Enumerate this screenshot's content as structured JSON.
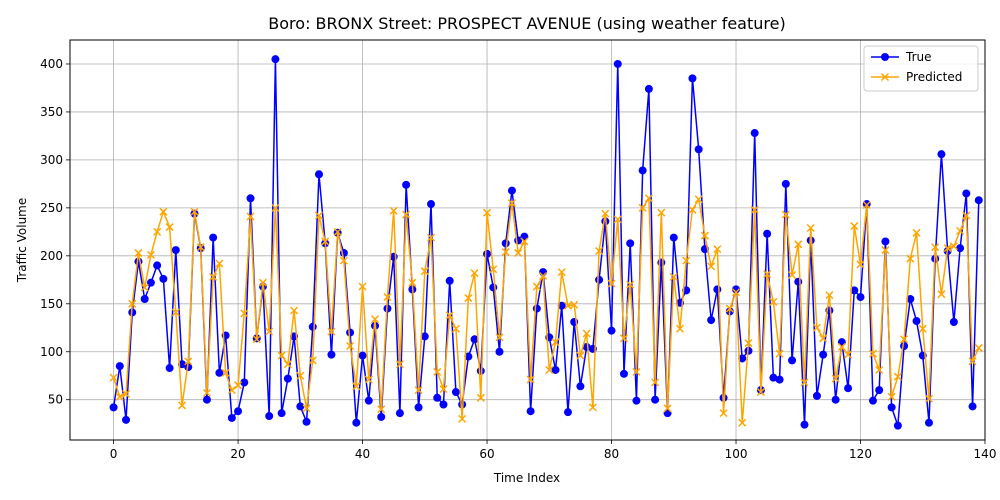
{
  "chart_data": {
    "type": "line",
    "title": "Boro: BRONX Street: PROSPECT AVENUE (using weather feature)",
    "xlabel": "Time Index",
    "ylabel": "Traffic Volume",
    "xlim": [
      -7,
      140
    ],
    "ylim": [
      8,
      425
    ],
    "xticks": [
      0,
      20,
      40,
      60,
      80,
      100,
      120,
      140
    ],
    "yticks": [
      50,
      100,
      150,
      200,
      250,
      300,
      350,
      400
    ],
    "grid": true,
    "legend_position": "top-right",
    "series": [
      {
        "name": "True",
        "color": "#0000ff",
        "marker": "circle",
        "values": [
          42,
          85,
          29,
          141,
          194,
          155,
          172,
          190,
          176,
          83,
          206,
          87,
          84,
          244,
          208,
          50,
          219,
          78,
          117,
          31,
          38,
          68,
          260,
          114,
          168,
          33,
          405,
          36,
          72,
          116,
          43,
          27,
          126,
          285,
          213,
          97,
          224,
          203,
          120,
          26,
          96,
          49,
          127,
          32,
          145,
          199,
          36,
          274,
          165,
          42,
          116,
          254,
          52,
          45,
          174,
          58,
          45,
          95,
          113,
          80,
          202,
          167,
          100,
          213,
          268,
          216,
          220,
          38,
          145,
          183,
          115,
          81,
          148,
          37,
          131,
          64,
          105,
          103,
          175,
          236,
          122,
          400,
          77,
          213,
          49,
          289,
          374,
          50,
          193,
          36,
          219,
          151,
          164,
          385,
          311,
          207,
          133,
          165,
          52,
          142,
          165,
          93,
          101,
          328,
          60,
          223,
          73,
          71,
          275,
          91,
          173,
          24,
          216,
          54,
          97,
          143,
          50,
          110,
          62,
          164,
          157,
          254,
          49,
          60,
          215,
          42,
          23,
          106,
          155,
          132,
          96,
          26,
          197,
          306,
          205,
          131,
          208,
          265,
          43,
          258
        ]
      },
      {
        "name": "Predicted",
        "color": "#ffa500",
        "marker": "x",
        "values": [
          73,
          53,
          56,
          150,
          203,
          167,
          201,
          225,
          246,
          230,
          141,
          44,
          90,
          246,
          209,
          57,
          178,
          192,
          78,
          60,
          65,
          140,
          241,
          113,
          172,
          121,
          250,
          96,
          87,
          143,
          75,
          41,
          91,
          242,
          215,
          121,
          225,
          195,
          106,
          64,
          168,
          71,
          134,
          40,
          157,
          247,
          87,
          243,
          172,
          60,
          184,
          219,
          79,
          61,
          138,
          124,
          30,
          156,
          182,
          52,
          245,
          186,
          115,
          204,
          255,
          203,
          215,
          71,
          168,
          179,
          81,
          110,
          183,
          148,
          149,
          96,
          119,
          42,
          205,
          244,
          171,
          238,
          114,
          170,
          79,
          250,
          260,
          68,
          245,
          41,
          178,
          124,
          195,
          248,
          259,
          221,
          189,
          207,
          36,
          145,
          162,
          26,
          109,
          248,
          58,
          181,
          152,
          98,
          243,
          180,
          212,
          68,
          229,
          125,
          114,
          159,
          72,
          105,
          97,
          231,
          191,
          253,
          98,
          81,
          206,
          53,
          74,
          113,
          197,
          224,
          124,
          51,
          209,
          160,
          208,
          210,
          226,
          242,
          90,
          104
        ]
      }
    ]
  }
}
